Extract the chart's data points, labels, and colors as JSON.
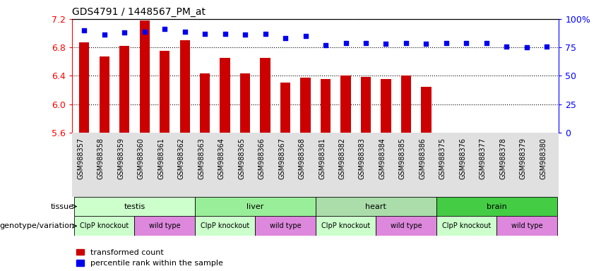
{
  "title": "GDS4791 / 1448567_PM_at",
  "samples": [
    "GSM988357",
    "GSM988358",
    "GSM988359",
    "GSM988360",
    "GSM988361",
    "GSM988362",
    "GSM988363",
    "GSM988364",
    "GSM988365",
    "GSM988366",
    "GSM988367",
    "GSM988368",
    "GSM988381",
    "GSM988382",
    "GSM988383",
    "GSM988384",
    "GSM988385",
    "GSM988386",
    "GSM988375",
    "GSM988376",
    "GSM988377",
    "GSM988378",
    "GSM988379",
    "GSM988380"
  ],
  "bar_values": [
    6.87,
    6.67,
    6.82,
    7.18,
    6.75,
    6.9,
    6.43,
    6.65,
    6.43,
    6.65,
    6.31,
    6.37,
    6.35,
    6.4,
    6.38,
    6.35,
    6.4,
    6.25,
    5.57,
    5.5,
    5.54,
    5.5,
    5.43,
    5.52
  ],
  "percentile_values": [
    90,
    86,
    88,
    89,
    91,
    89,
    87,
    87,
    86,
    87,
    83,
    85,
    77,
    79,
    79,
    78,
    79,
    78,
    79,
    79,
    79,
    76,
    75,
    76
  ],
  "ylim_left": [
    5.6,
    7.2
  ],
  "ylim_right": [
    0,
    100
  ],
  "yticks_left": [
    5.6,
    6.0,
    6.4,
    6.8,
    7.2
  ],
  "yticks_right": [
    0,
    25,
    50,
    75,
    100
  ],
  "bar_color": "#CC0000",
  "dot_color": "#0000EE",
  "bar_base": 5.6,
  "xlabel_bg": "#E0E0E0",
  "tissues": [
    {
      "label": "testis",
      "start": 0,
      "end": 6,
      "color": "#CCFFCC"
    },
    {
      "label": "liver",
      "start": 6,
      "end": 12,
      "color": "#99EE99"
    },
    {
      "label": "heart",
      "start": 12,
      "end": 18,
      "color": "#AADDAA"
    },
    {
      "label": "brain",
      "start": 18,
      "end": 24,
      "color": "#44CC44"
    }
  ],
  "genotypes": [
    {
      "label": "ClpP knockout",
      "start": 0,
      "end": 3,
      "color": "#CCFFCC"
    },
    {
      "label": "wild type",
      "start": 3,
      "end": 6,
      "color": "#DD88DD"
    },
    {
      "label": "ClpP knockout",
      "start": 6,
      "end": 9,
      "color": "#CCFFCC"
    },
    {
      "label": "wild type",
      "start": 9,
      "end": 12,
      "color": "#DD88DD"
    },
    {
      "label": "ClpP knockout",
      "start": 12,
      "end": 15,
      "color": "#CCFFCC"
    },
    {
      "label": "wild type",
      "start": 15,
      "end": 18,
      "color": "#DD88DD"
    },
    {
      "label": "ClpP knockout",
      "start": 18,
      "end": 21,
      "color": "#CCFFCC"
    },
    {
      "label": "wild type",
      "start": 21,
      "end": 24,
      "color": "#DD88DD"
    }
  ]
}
